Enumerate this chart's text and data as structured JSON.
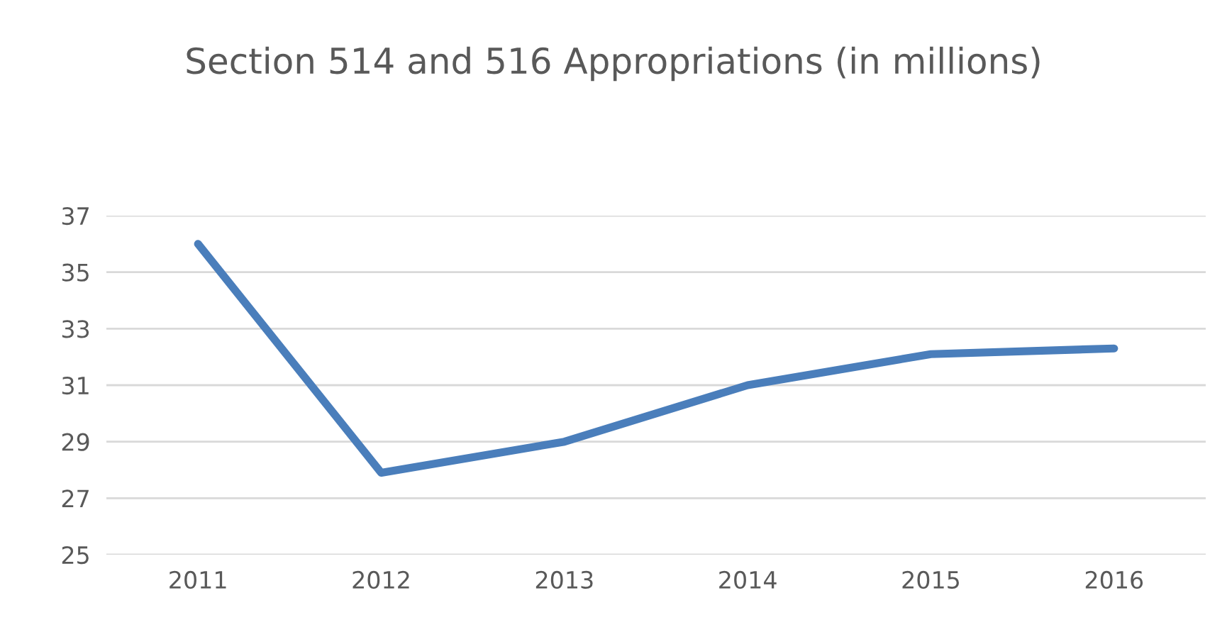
{
  "chart_data": {
    "type": "line",
    "title": "Section 514 and 516 Appropriations (in millions)",
    "categories": [
      "2011",
      "2012",
      "2013",
      "2014",
      "2015",
      "2016"
    ],
    "series": [
      {
        "color": "#4a7ebb",
        "values": [
          36,
          27.9,
          29,
          31,
          32.1,
          32.3
        ]
      }
    ],
    "ylim": [
      25,
      37
    ],
    "yticks": [
      25,
      27,
      29,
      31,
      33,
      35,
      37
    ],
    "grid": "y",
    "marker": "none",
    "line_style": "solid"
  }
}
